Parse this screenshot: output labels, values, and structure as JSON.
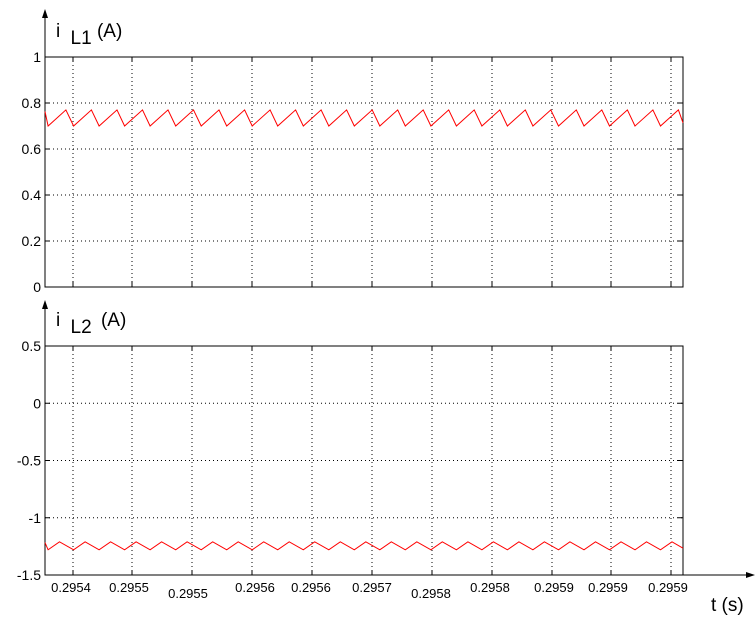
{
  "chart_data": [
    {
      "type": "line",
      "ylabel_main": "i",
      "ylabel_sub": "L1",
      "ylabel_unit": "(A)",
      "ylim": [
        0,
        1
      ],
      "yticks": [
        "0",
        "0.2",
        "0.4",
        "0.6",
        "0.8",
        "1"
      ],
      "xlim": [
        0.29536,
        0.29594
      ],
      "grid": true,
      "series": [
        {
          "color": "#ff0000",
          "x_range": [
            0.29536,
            0.29594
          ],
          "periods": 25,
          "min": 0.7,
          "max": 0.77,
          "ramp_fraction": 0.7
        }
      ]
    },
    {
      "type": "line",
      "ylabel_main": "i",
      "ylabel_sub": "L2",
      "ylabel_unit": "(A)",
      "ylim": [
        -1.5,
        0.5
      ],
      "yticks": [
        "-1.5",
        "-1",
        "-0.5",
        "0",
        "0.5"
      ],
      "xlim": [
        0.29536,
        0.29594
      ],
      "x_ticklabels": [
        "0.2954",
        "0.2955",
        "0.2955",
        "0.2956",
        "0.2956",
        "0.2957",
        "0.2958",
        "0.2958",
        "0.2959",
        "0.2959",
        "0.2959"
      ],
      "xlabel": "t (s)",
      "grid": true,
      "series": [
        {
          "color": "#ff0000",
          "x_range": [
            0.29536,
            0.29594
          ],
          "periods": 25,
          "min": -1.28,
          "max": -1.21,
          "ramp_fraction": 0.45
        }
      ]
    }
  ]
}
